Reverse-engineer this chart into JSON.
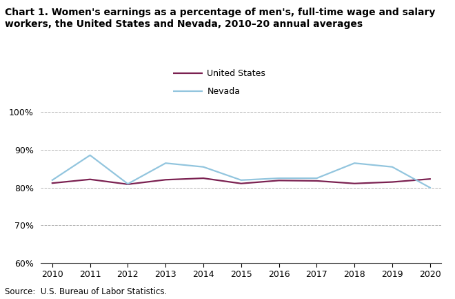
{
  "title_line1": "Chart 1. Women's earnings as a percentage of men's, full-time wage and salary",
  "title_line2": "workers, the United States and Nevada, 2010–20 annual averages",
  "years": [
    2010,
    2011,
    2012,
    2013,
    2014,
    2015,
    2016,
    2017,
    2018,
    2019,
    2020
  ],
  "us_values": [
    81.2,
    82.2,
    80.9,
    82.1,
    82.5,
    81.1,
    81.9,
    81.8,
    81.1,
    81.5,
    82.3
  ],
  "nevada_values": [
    82.0,
    88.6,
    81.0,
    86.5,
    85.5,
    82.0,
    82.5,
    82.5,
    86.5,
    85.5,
    80.0
  ],
  "us_color": "#7B2151",
  "nevada_color": "#92C5DE",
  "ylim": [
    60,
    102
  ],
  "yticks": [
    60,
    70,
    80,
    90,
    100
  ],
  "xlim_min": 2010,
  "xlim_max": 2020,
  "legend_labels": [
    "United States",
    "Nevada"
  ],
  "source_text": "Source:  U.S. Bureau of Labor Statistics.",
  "grid_color": "#b0b0b0",
  "line_width": 1.6,
  "tick_fontsize": 9,
  "legend_fontsize": 9,
  "title_fontsize": 10,
  "source_fontsize": 8.5
}
